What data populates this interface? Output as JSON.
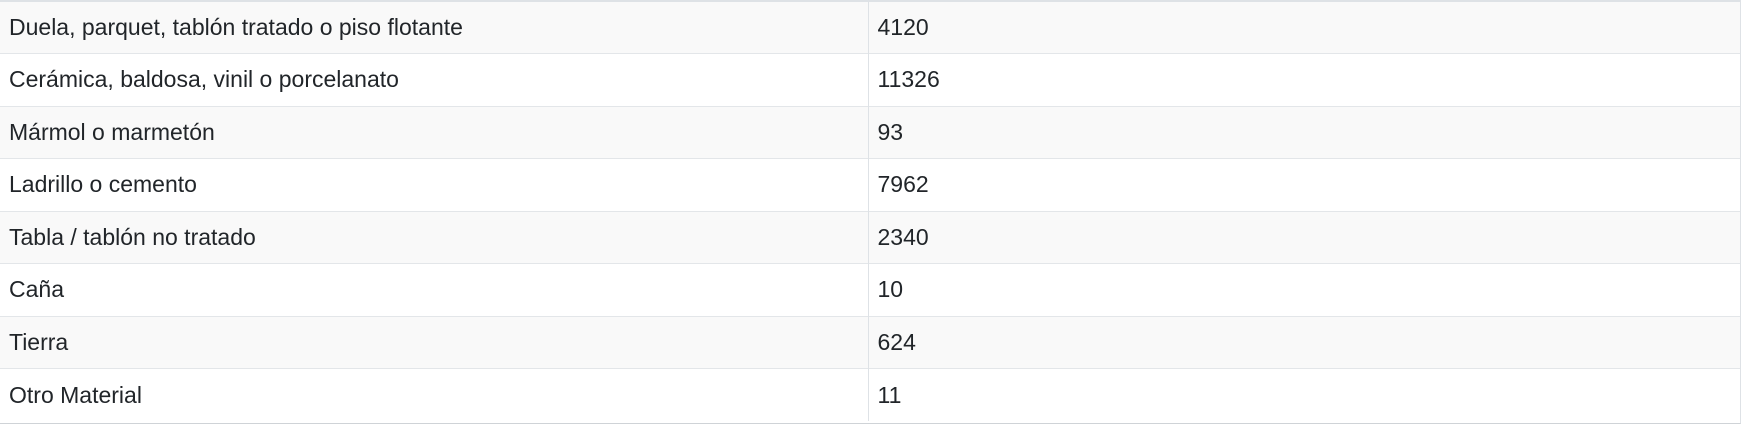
{
  "table": {
    "rows": [
      {
        "name": "Duela, parquet, tablón tratado o piso flotante",
        "value": "4120"
      },
      {
        "name": "Cerámica, baldosa, vinil o porcelanato",
        "value": "11326"
      },
      {
        "name": "Mármol o marmetón",
        "value": "93"
      },
      {
        "name": "Ladrillo o cemento",
        "value": "7962"
      },
      {
        "name": "Tabla / tablón no tratado",
        "value": "2340"
      },
      {
        "name": "Caña",
        "value": "10"
      },
      {
        "name": "Tierra",
        "value": "624"
      },
      {
        "name": "Otro Material",
        "value": "11"
      }
    ]
  }
}
